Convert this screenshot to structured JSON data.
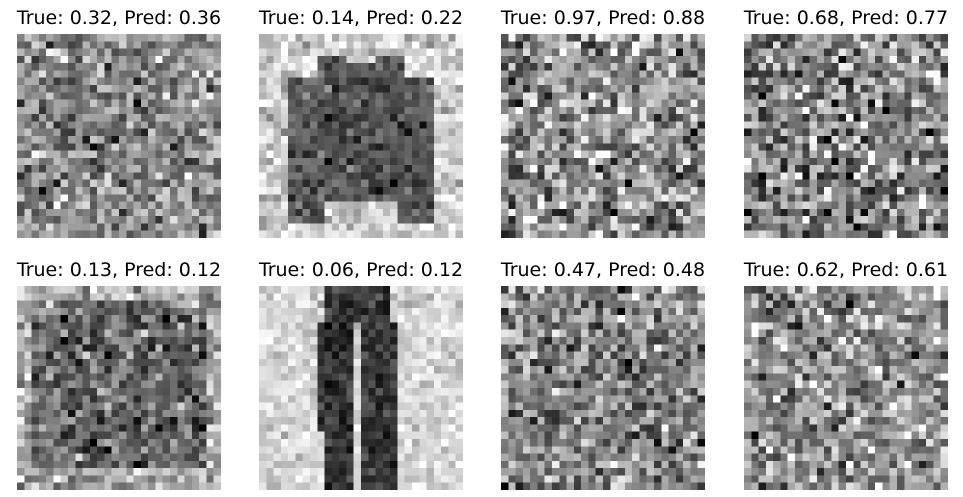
{
  "figure": {
    "panels": [
      {
        "title": "True: 0.32, Pred: 0.36",
        "true_value": 0.32,
        "pred_value": 0.36,
        "content": "noise-faint-garment"
      },
      {
        "title": "True: 0.14, Pred: 0.22",
        "true_value": 0.14,
        "pred_value": 0.22,
        "content": "long-sleeve-top"
      },
      {
        "title": "True: 0.97, Pred: 0.88",
        "true_value": 0.97,
        "pred_value": 0.88,
        "content": "noise"
      },
      {
        "title": "True: 0.68, Pred: 0.77",
        "true_value": 0.68,
        "pred_value": 0.77,
        "content": "noise-dark"
      },
      {
        "title": "True: 0.13, Pred: 0.12",
        "true_value": 0.13,
        "pred_value": 0.12,
        "content": "pullover"
      },
      {
        "title": "True: 0.06, Pred: 0.12",
        "true_value": 0.06,
        "pred_value": 0.12,
        "content": "trousers"
      },
      {
        "title": "True: 0.47, Pred: 0.48",
        "true_value": 0.47,
        "pred_value": 0.48,
        "content": "noise-faint-garment-2"
      },
      {
        "title": "True: 0.62, Pred: 0.61",
        "true_value": 0.62,
        "pred_value": 0.61,
        "content": "noise-2"
      }
    ]
  }
}
